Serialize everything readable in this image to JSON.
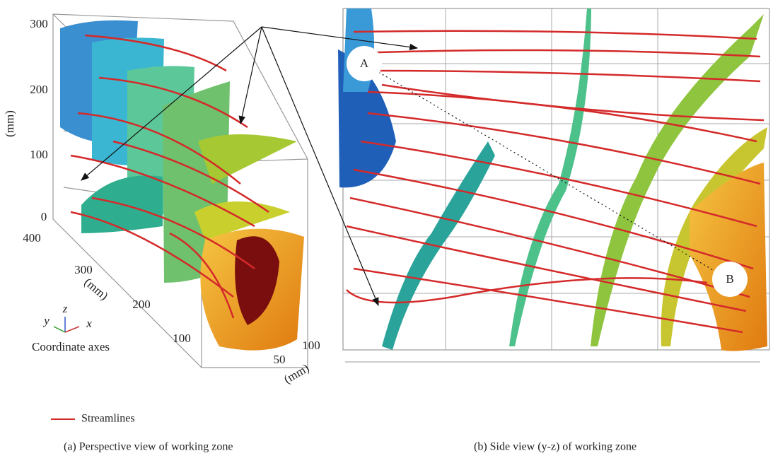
{
  "panel_a": {
    "z_axis": {
      "label": "(mm)",
      "ticks": [
        "300",
        "200",
        "100",
        "0"
      ]
    },
    "y_axis": {
      "label": "(mm)",
      "ticks": [
        "400",
        "300",
        "200",
        "100"
      ]
    },
    "x_axis": {
      "label": "(mm)",
      "ticks": [
        "100",
        "50"
      ]
    },
    "coordinate_axes": {
      "y": "y",
      "z": "z",
      "x": "x",
      "label": "Coordinate axes"
    }
  },
  "panel_b": {
    "points": [
      "A",
      "B"
    ]
  },
  "legend": {
    "streamlines": "Streamlines"
  },
  "captions": [
    "(a) Perspective view of working zone",
    "(b) Side view (y-z) of working zone"
  ]
}
